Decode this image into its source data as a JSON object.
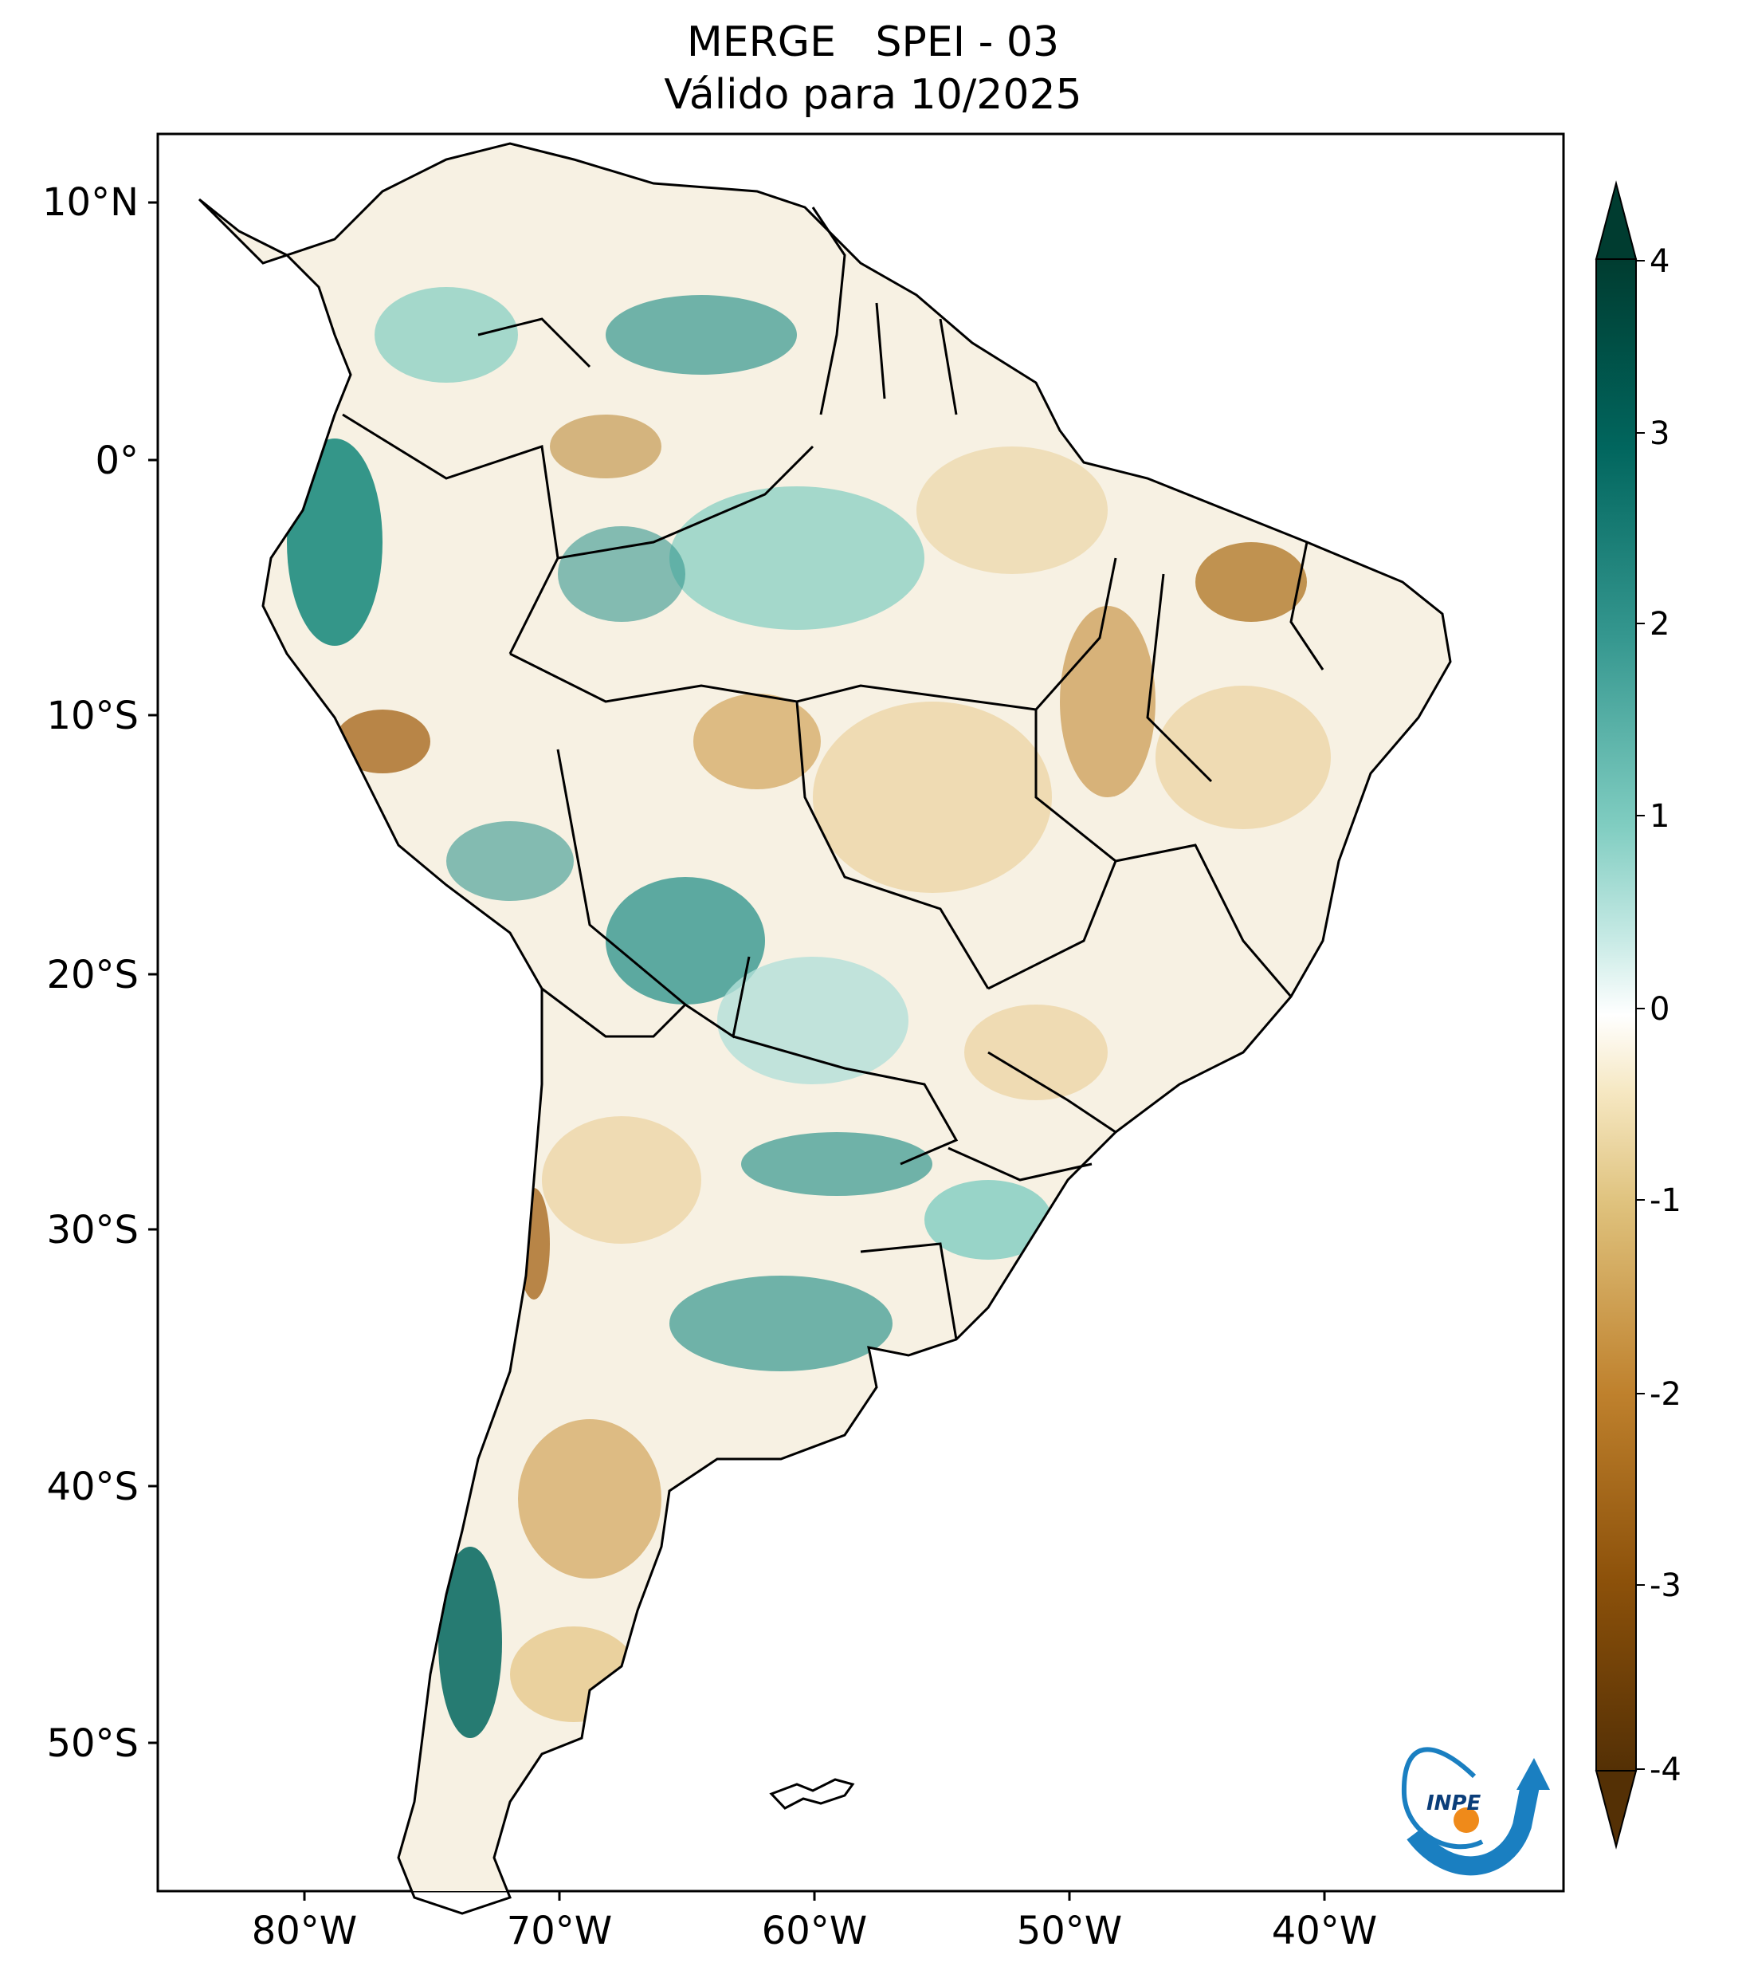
{
  "title": {
    "line1": "MERGE   SPEI - 03",
    "line2": "Válido para 10/2025"
  },
  "map": {
    "region": "South America",
    "lat_ticks": [
      "10°N",
      "0°",
      "10°S",
      "20°S",
      "30°S",
      "40°S",
      "50°S"
    ],
    "lon_ticks": [
      "80°W",
      "70°W",
      "60°W",
      "50°W",
      "40°W"
    ],
    "lat_values": [
      10,
      0,
      -10,
      -20,
      -30,
      -40,
      -50
    ],
    "lon_values": [
      -80,
      -70,
      -60,
      -50,
      -40
    ],
    "extent": {
      "lon": [
        -85,
        -30
      ],
      "lat": [
        -56,
        13
      ]
    }
  },
  "colorbar": {
    "ticks": [
      "4",
      "3",
      "2",
      "1",
      "0",
      "-1",
      "-2",
      "-3",
      "-4"
    ],
    "range": [
      -4,
      4
    ],
    "extend": "both",
    "colors": {
      "max": "#003c30",
      "high": "#01665e",
      "mid_high": "#35978f",
      "low_high": "#80cdc1",
      "light_high": "#c7eae5",
      "zero": "#f5f5f5",
      "light_low": "#f6e8c3",
      "low_low": "#dfc27d",
      "mid_low": "#bf812d",
      "low": "#8c510a",
      "min": "#543005"
    }
  },
  "logo": {
    "text": "INPE"
  }
}
